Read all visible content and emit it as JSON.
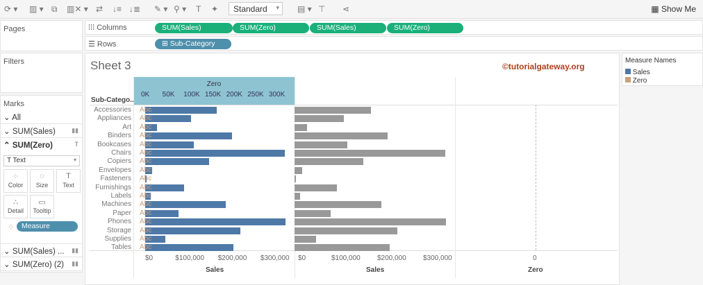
{
  "toolbar": {
    "fit_select": "Standard",
    "show_me": "Show Me"
  },
  "shelves": {
    "pages": "Pages",
    "filters": "Filters",
    "columns_label": "Columns",
    "rows_label": "Rows",
    "columns": [
      "SUM(Sales)",
      "SUM(Zero)",
      "SUM(Sales)",
      "SUM(Zero)"
    ],
    "rows": [
      "Sub-Category"
    ]
  },
  "marks": {
    "title": "Marks",
    "items": [
      "All",
      "SUM(Sales)",
      "SUM(Zero)"
    ],
    "mark_type": "Text",
    "cards": [
      "Color",
      "Size",
      "Text",
      "Detail",
      "Tooltip"
    ],
    "pill": "Measure Names",
    "more": [
      "SUM(Sales) ...",
      "SUM(Zero) (2)"
    ]
  },
  "sheet": {
    "title": "Sheet 3",
    "watermark": "©tutorialgateway.org",
    "row_header": "Sub-Catego..",
    "top_axis_title": "Zero",
    "top_ticks": [
      "0K",
      "50K",
      "100K",
      "150K",
      "200K",
      "250K",
      "300K"
    ],
    "bottom_ticks": [
      "$0",
      "$100,000",
      "$200,000",
      "$300,000"
    ],
    "zero_tick": "0",
    "bottom_titles": [
      "Sales",
      "Sales",
      "Zero"
    ],
    "text_mark": "Abc"
  },
  "legend": {
    "title": "Measure Names",
    "items": [
      {
        "label": "Sales",
        "color": "#4e79a7"
      },
      {
        "label": "Zero",
        "color": "#c9a07e"
      }
    ]
  },
  "chart_data": {
    "type": "bar",
    "categories": [
      "Accessories",
      "Appliances",
      "Art",
      "Binders",
      "Bookcases",
      "Chairs",
      "Copiers",
      "Envelopes",
      "Fasteners",
      "Furnishings",
      "Labels",
      "Machines",
      "Paper",
      "Phones",
      "Storage",
      "Supplies",
      "Tables"
    ],
    "series": [
      {
        "name": "Sales",
        "values": [
          167380,
          107532,
          27119,
          203413,
          114880,
          328449,
          149528,
          16476,
          3024,
          91705,
          12486,
          189239,
          78479,
          330007,
          223844,
          46674,
          206966
        ]
      },
      {
        "name": "Zero",
        "values": [
          0,
          0,
          0,
          0,
          0,
          0,
          0,
          0,
          0,
          0,
          0,
          0,
          0,
          0,
          0,
          0,
          0
        ]
      }
    ],
    "xlim": [
      0,
      350000
    ]
  }
}
